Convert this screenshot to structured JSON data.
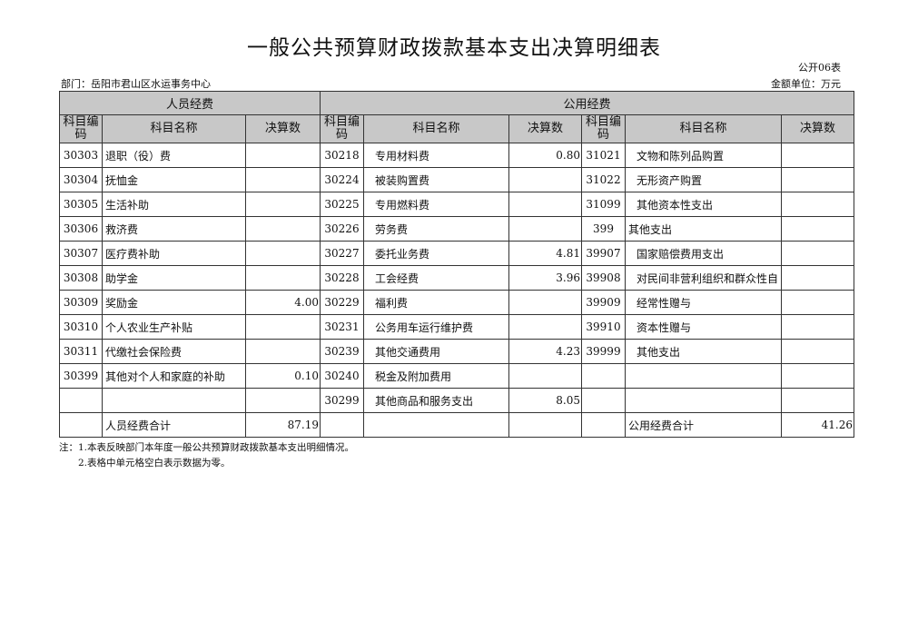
{
  "title": "一般公共预算财政拨款基本支出决算明细表",
  "form_no": "公开06表",
  "department": "部门：岳阳市君山区水运事务中心",
  "unit": "金额单位：万元",
  "headers": {
    "personnel": "人员经费",
    "public": "公用经费",
    "code": "科目编码",
    "name": "科目名称",
    "amount": "决算数"
  },
  "rows": [
    [
      "30303",
      "退职（役）费",
      "",
      "30218",
      "专用材料费",
      "0.80",
      "31021",
      "文物和陈列品购置",
      ""
    ],
    [
      "30304",
      "抚恤金",
      "",
      "30224",
      "被装购置费",
      "",
      "31022",
      "无形资产购置",
      ""
    ],
    [
      "30305",
      "生活补助",
      "",
      "30225",
      "专用燃料费",
      "",
      "31099",
      "其他资本性支出",
      ""
    ],
    [
      "30306",
      "救济费",
      "",
      "30226",
      "劳务费",
      "",
      "399",
      "其他支出",
      ""
    ],
    [
      "30307",
      "医疗费补助",
      "",
      "30227",
      "委托业务费",
      "4.81",
      "39907",
      "国家赔偿费用支出",
      ""
    ],
    [
      "30308",
      "助学金",
      "",
      "30228",
      "工会经费",
      "3.96",
      "39908",
      "对民间非营利组织和群众性自",
      ""
    ],
    [
      "30309",
      "奖励金",
      "4.00",
      "30229",
      "福利费",
      "",
      "39909",
      "经常性赠与",
      ""
    ],
    [
      "30310",
      "个人农业生产补贴",
      "",
      "30231",
      "公务用车运行维护费",
      "",
      "39910",
      "资本性赠与",
      ""
    ],
    [
      "30311",
      "代缴社会保险费",
      "",
      "30239",
      "其他交通费用",
      "4.23",
      "39999",
      "其他支出",
      ""
    ],
    [
      "30399",
      "其他对个人和家庭的补助",
      "0.10",
      "30240",
      "税金及附加费用",
      "",
      "",
      "",
      ""
    ],
    [
      "",
      "",
      "",
      "30299",
      "其他商品和服务支出",
      "8.05",
      "",
      "",
      ""
    ],
    [
      "",
      "人员经费合计",
      "87.19",
      "",
      "",
      "",
      "",
      "公用经费合计",
      "41.26"
    ]
  ],
  "notes": [
    "注：1.本表反映部门本年度一般公共预算财政拨款基本支出明细情况。",
    "2.表格中单元格空白表示数据为零。"
  ]
}
